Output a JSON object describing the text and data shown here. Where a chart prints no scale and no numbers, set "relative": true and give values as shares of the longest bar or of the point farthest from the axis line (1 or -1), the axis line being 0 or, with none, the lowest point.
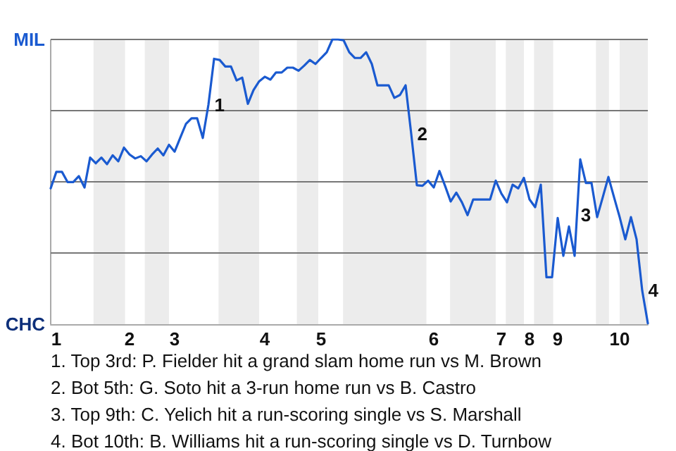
{
  "chart_data": {
    "type": "line",
    "relative": true,
    "categories": [
      null,
      "1",
      null,
      null,
      null,
      null,
      null,
      null,
      null,
      null,
      null,
      null,
      null,
      null,
      "2",
      null,
      null,
      null,
      null,
      null,
      null,
      null,
      "3",
      null,
      null,
      null,
      null,
      null,
      null,
      null,
      null,
      null,
      null,
      null,
      null,
      null,
      null,
      null,
      "4",
      null,
      null,
      null,
      null,
      null,
      null,
      null,
      null,
      null,
      "5",
      null,
      null,
      null,
      null,
      null,
      null,
      null,
      null,
      null,
      null,
      null,
      null,
      null,
      null,
      null,
      null,
      null,
      null,
      null,
      "6",
      null,
      null,
      null,
      null,
      null,
      null,
      null,
      null,
      null,
      null,
      null,
      "7",
      null,
      null,
      null,
      null,
      "8",
      null,
      null,
      null,
      null,
      "9",
      null,
      null,
      null,
      null,
      null,
      null,
      null,
      null,
      null,
      null,
      "10",
      null,
      null,
      null,
      null,
      null
    ],
    "grid": "y",
    "marker": "none",
    "line_style": "solid",
    "series": [
      {
        "color": "#1a5ad0",
        "values": [
          0.477,
          0.535,
          0.535,
          0.499,
          0.499,
          0.52,
          0.48,
          0.585,
          0.565,
          0.585,
          0.562,
          0.593,
          0.572,
          0.62,
          0.596,
          0.582,
          0.59,
          0.572,
          0.596,
          0.617,
          0.593,
          0.63,
          0.606,
          0.655,
          0.703,
          0.723,
          0.723,
          0.654,
          0.771,
          0.932,
          0.928,
          0.905,
          0.905,
          0.856,
          0.866,
          0.774,
          0.822,
          0.853,
          0.869,
          0.859,
          0.884,
          0.884,
          0.901,
          0.901,
          0.89,
          0.908,
          0.928,
          0.914,
          0.935,
          0.955,
          1,
          1,
          0.997,
          0.955,
          0.935,
          0.935,
          0.955,
          0.914,
          0.839,
          0.839,
          0.839,
          0.795,
          0.805,
          0.839,
          0.668,
          0.488,
          0.486,
          0.504,
          0.48,
          0.538,
          0.486,
          0.431,
          0.462,
          0.428,
          0.383,
          0.438,
          0.438,
          0.438,
          0.438,
          0.504,
          0.459,
          0.428,
          0.49,
          0.477,
          0.514,
          0.438,
          0.411,
          0.49,
          0.165,
          0.165,
          0.373,
          0.24,
          0.343,
          0.24,
          0.579,
          0.496,
          0.496,
          0.376,
          0.446,
          0.517,
          0.446,
          0.376,
          0.298,
          0.376,
          0.298,
          0.118,
          0.003
        ]
      }
    ],
    "annotations": [
      "MIL",
      "CHC",
      "1",
      "2",
      "3",
      "4",
      "1. Top 3rd: P. Fielder hit a grand slam home run vs M. Brown",
      "2. Bot 5th: G. Soto hit a 3-run home run vs B. Castro",
      "3. Top 9th: C. Yelich hit a run-scoring single vs S. Marshall",
      "4. Bot 10th: B. Williams hit a run-scoring single vs D. Turnbow"
    ]
  }
}
